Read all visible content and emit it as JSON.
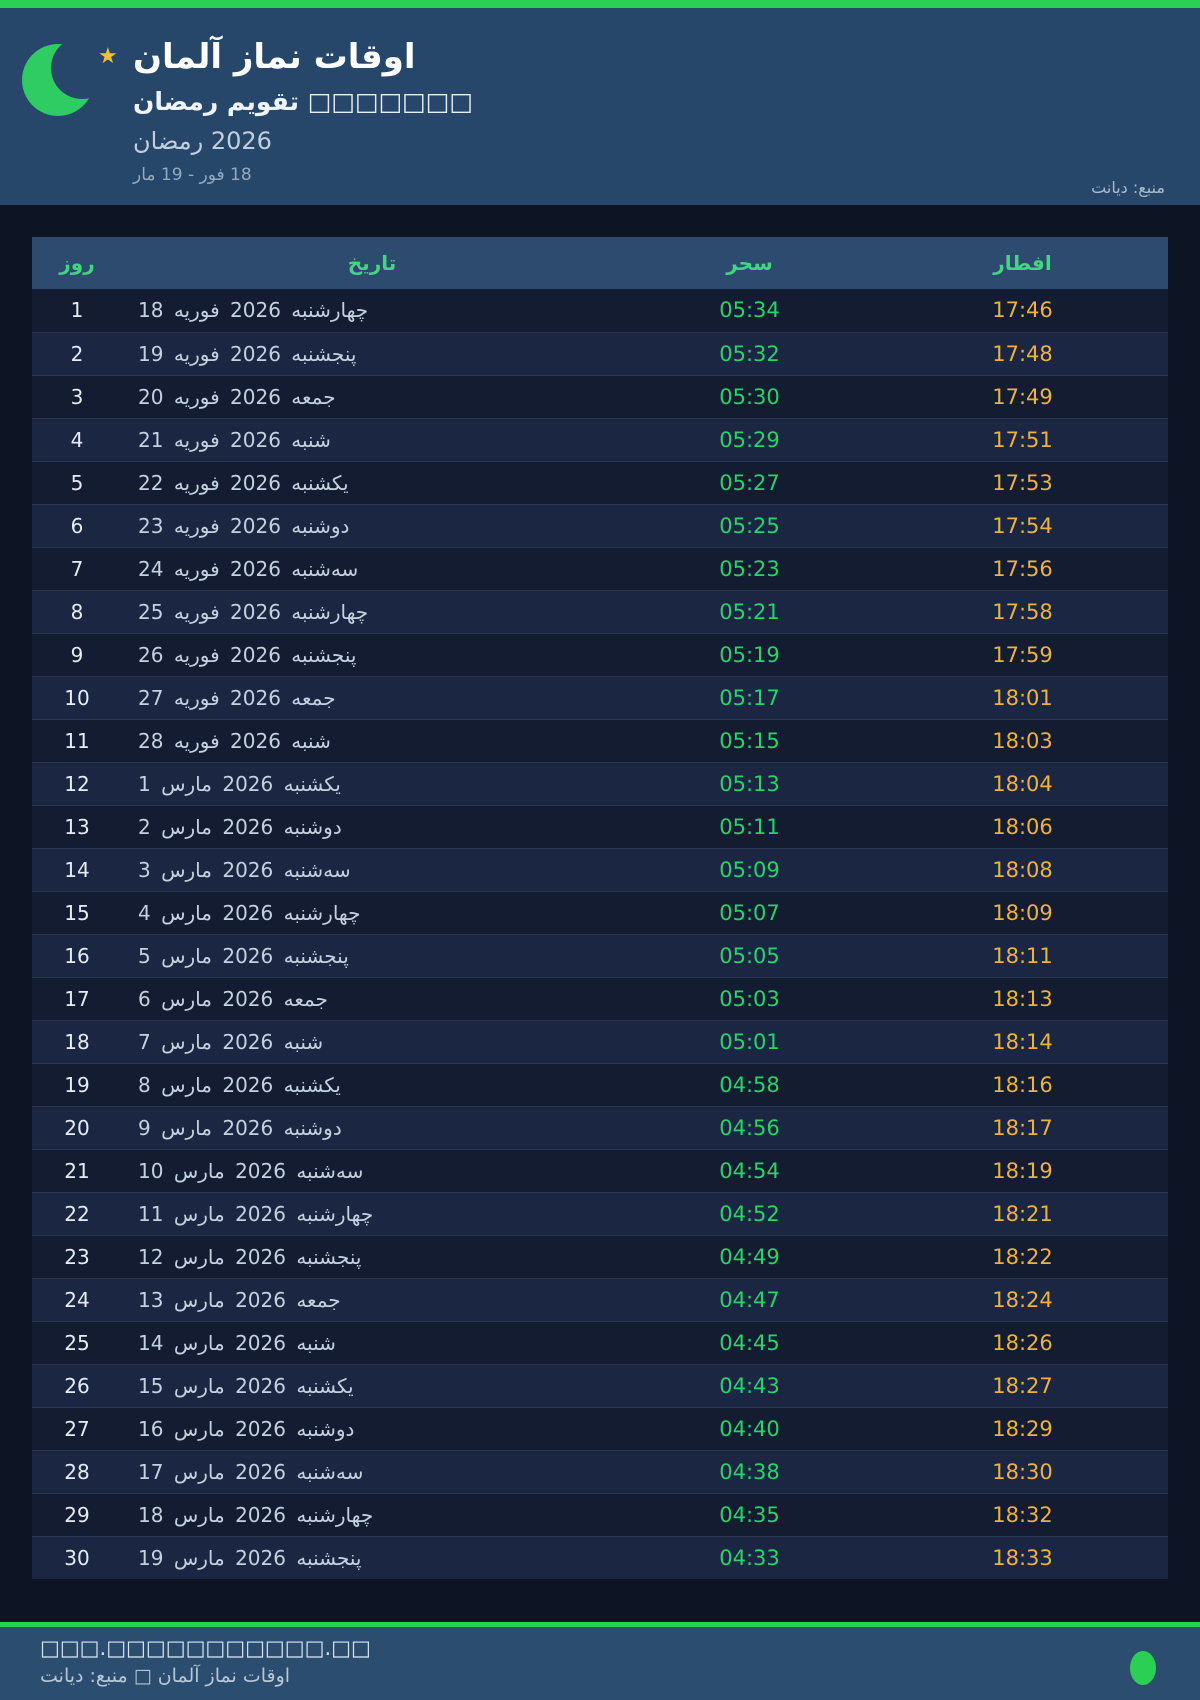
{
  "header": {
    "title": "اوقات نماز آلمان",
    "subtitle": {
      "calendar_label": "تقویم رمضان",
      "missing_glyphs": "□□□□□□□"
    },
    "month_label": "رمضان",
    "year": "2026",
    "date_range": "18 فور - 19 مار",
    "source_note": "منبع: دیانت",
    "icons": {
      "moon": "crescent-moon-icon",
      "star": "star-icon"
    }
  },
  "table": {
    "columns": {
      "day": "روز",
      "date": "تاریخ",
      "suhoor": "سحر",
      "iftar": "افطار"
    },
    "rows": [
      {
        "day": "1",
        "date_day": "18",
        "month": "فوریه",
        "year": "2026",
        "weekday": "چهارشنبه",
        "suhoor": "05:34",
        "iftar": "17:46"
      },
      {
        "day": "2",
        "date_day": "19",
        "month": "فوریه",
        "year": "2026",
        "weekday": "پنجشنبه",
        "suhoor": "05:32",
        "iftar": "17:48"
      },
      {
        "day": "3",
        "date_day": "20",
        "month": "فوریه",
        "year": "2026",
        "weekday": "جمعه",
        "suhoor": "05:30",
        "iftar": "17:49"
      },
      {
        "day": "4",
        "date_day": "21",
        "month": "فوریه",
        "year": "2026",
        "weekday": "شنبه",
        "suhoor": "05:29",
        "iftar": "17:51"
      },
      {
        "day": "5",
        "date_day": "22",
        "month": "فوریه",
        "year": "2026",
        "weekday": "یکشنبه",
        "suhoor": "05:27",
        "iftar": "17:53"
      },
      {
        "day": "6",
        "date_day": "23",
        "month": "فوریه",
        "year": "2026",
        "weekday": "دوشنبه",
        "suhoor": "05:25",
        "iftar": "17:54"
      },
      {
        "day": "7",
        "date_day": "24",
        "month": "فوریه",
        "year": "2026",
        "weekday": "سه‌شنبه",
        "suhoor": "05:23",
        "iftar": "17:56"
      },
      {
        "day": "8",
        "date_day": "25",
        "month": "فوریه",
        "year": "2026",
        "weekday": "چهارشنبه",
        "suhoor": "05:21",
        "iftar": "17:58"
      },
      {
        "day": "9",
        "date_day": "26",
        "month": "فوریه",
        "year": "2026",
        "weekday": "پنجشنبه",
        "suhoor": "05:19",
        "iftar": "17:59"
      },
      {
        "day": "10",
        "date_day": "27",
        "month": "فوریه",
        "year": "2026",
        "weekday": "جمعه",
        "suhoor": "05:17",
        "iftar": "18:01"
      },
      {
        "day": "11",
        "date_day": "28",
        "month": "فوریه",
        "year": "2026",
        "weekday": "شنبه",
        "suhoor": "05:15",
        "iftar": "18:03"
      },
      {
        "day": "12",
        "date_day": "1",
        "month": "مارس",
        "year": "2026",
        "weekday": "یکشنبه",
        "suhoor": "05:13",
        "iftar": "18:04"
      },
      {
        "day": "13",
        "date_day": "2",
        "month": "مارس",
        "year": "2026",
        "weekday": "دوشنبه",
        "suhoor": "05:11",
        "iftar": "18:06"
      },
      {
        "day": "14",
        "date_day": "3",
        "month": "مارس",
        "year": "2026",
        "weekday": "سه‌شنبه",
        "suhoor": "05:09",
        "iftar": "18:08"
      },
      {
        "day": "15",
        "date_day": "4",
        "month": "مارس",
        "year": "2026",
        "weekday": "چهارشنبه",
        "suhoor": "05:07",
        "iftar": "18:09"
      },
      {
        "day": "16",
        "date_day": "5",
        "month": "مارس",
        "year": "2026",
        "weekday": "پنجشنبه",
        "suhoor": "05:05",
        "iftar": "18:11"
      },
      {
        "day": "17",
        "date_day": "6",
        "month": "مارس",
        "year": "2026",
        "weekday": "جمعه",
        "suhoor": "05:03",
        "iftar": "18:13"
      },
      {
        "day": "18",
        "date_day": "7",
        "month": "مارس",
        "year": "2026",
        "weekday": "شنبه",
        "suhoor": "05:01",
        "iftar": "18:14"
      },
      {
        "day": "19",
        "date_day": "8",
        "month": "مارس",
        "year": "2026",
        "weekday": "یکشنبه",
        "suhoor": "04:58",
        "iftar": "18:16"
      },
      {
        "day": "20",
        "date_day": "9",
        "month": "مارس",
        "year": "2026",
        "weekday": "دوشنبه",
        "suhoor": "04:56",
        "iftar": "18:17"
      },
      {
        "day": "21",
        "date_day": "10",
        "month": "مارس",
        "year": "2026",
        "weekday": "سه‌شنبه",
        "suhoor": "04:54",
        "iftar": "18:19"
      },
      {
        "day": "22",
        "date_day": "11",
        "month": "مارس",
        "year": "2026",
        "weekday": "چهارشنبه",
        "suhoor": "04:52",
        "iftar": "18:21"
      },
      {
        "day": "23",
        "date_day": "12",
        "month": "مارس",
        "year": "2026",
        "weekday": "پنجشنبه",
        "suhoor": "04:49",
        "iftar": "18:22"
      },
      {
        "day": "24",
        "date_day": "13",
        "month": "مارس",
        "year": "2026",
        "weekday": "جمعه",
        "suhoor": "04:47",
        "iftar": "18:24"
      },
      {
        "day": "25",
        "date_day": "14",
        "month": "مارس",
        "year": "2026",
        "weekday": "شنبه",
        "suhoor": "04:45",
        "iftar": "18:26"
      },
      {
        "day": "26",
        "date_day": "15",
        "month": "مارس",
        "year": "2026",
        "weekday": "یکشنبه",
        "suhoor": "04:43",
        "iftar": "18:27"
      },
      {
        "day": "27",
        "date_day": "16",
        "month": "مارس",
        "year": "2026",
        "weekday": "دوشنبه",
        "suhoor": "04:40",
        "iftar": "18:29"
      },
      {
        "day": "28",
        "date_day": "17",
        "month": "مارس",
        "year": "2026",
        "weekday": "سه‌شنبه",
        "suhoor": "04:38",
        "iftar": "18:30"
      },
      {
        "day": "29",
        "date_day": "18",
        "month": "مارس",
        "year": "2026",
        "weekday": "چهارشنبه",
        "suhoor": "04:35",
        "iftar": "18:32"
      },
      {
        "day": "30",
        "date_day": "19",
        "month": "مارس",
        "year": "2026",
        "weekday": "پنجشنبه",
        "suhoor": "04:33",
        "iftar": "18:33"
      }
    ]
  },
  "footer": {
    "line1": "□□□.□□□□□□□□□□□.□□",
    "line2": "اوقات نماز آلمان □ منبع: دیانت"
  },
  "colors": {
    "accent_green": "#2bcf53",
    "moon_green": "#2ecc63",
    "star_gold": "#f2c12f",
    "suhoor_green": "#27d468",
    "iftar_orange": "#efb23e",
    "header_label_green": "#41d77d",
    "hero_bg": "#26466a",
    "footer_bg": "#2b4d70",
    "page_bg": "#0d1424",
    "table_header_bg": "#2c4b6f",
    "row_odd": "#141c31",
    "row_even": "#1b2742"
  }
}
